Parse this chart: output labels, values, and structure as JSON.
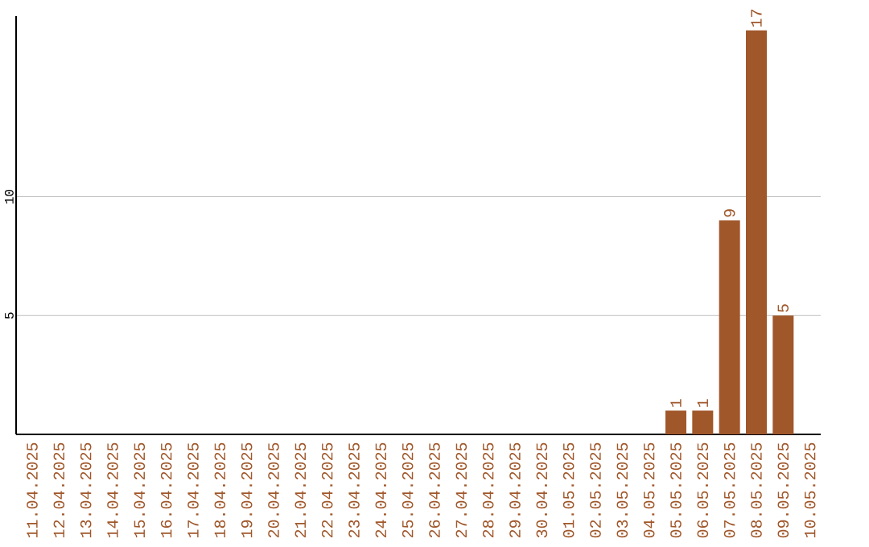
{
  "chart_data": {
    "type": "bar",
    "categories": [
      "11.04.2025",
      "12.04.2025",
      "13.04.2025",
      "14.04.2025",
      "15.04.2025",
      "16.04.2025",
      "17.04.2025",
      "18.04.2025",
      "19.04.2025",
      "20.04.2025",
      "21.04.2025",
      "22.04.2025",
      "23.04.2025",
      "24.04.2025",
      "25.04.2025",
      "26.04.2025",
      "27.04.2025",
      "28.04.2025",
      "29.04.2025",
      "30.04.2025",
      "01.05.2025",
      "02.05.2025",
      "03.05.2025",
      "04.05.2025",
      "05.05.2025",
      "06.05.2025",
      "07.05.2025",
      "08.05.2025",
      "09.05.2025",
      "10.05.2025"
    ],
    "values": [
      0,
      0,
      0,
      0,
      0,
      0,
      0,
      0,
      0,
      0,
      0,
      0,
      0,
      0,
      0,
      0,
      0,
      0,
      0,
      0,
      0,
      0,
      0,
      0,
      1,
      1,
      9,
      17,
      5,
      0
    ],
    "value_labels": [
      null,
      null,
      null,
      null,
      null,
      null,
      null,
      null,
      null,
      null,
      null,
      null,
      null,
      null,
      null,
      null,
      null,
      null,
      null,
      null,
      null,
      null,
      null,
      null,
      "1",
      "1",
      "9",
      "17",
      "5",
      null
    ],
    "color": "#a0572a",
    "ylim": [
      0,
      17.6
    ],
    "yticks": [
      5,
      10
    ],
    "grid": "y"
  }
}
